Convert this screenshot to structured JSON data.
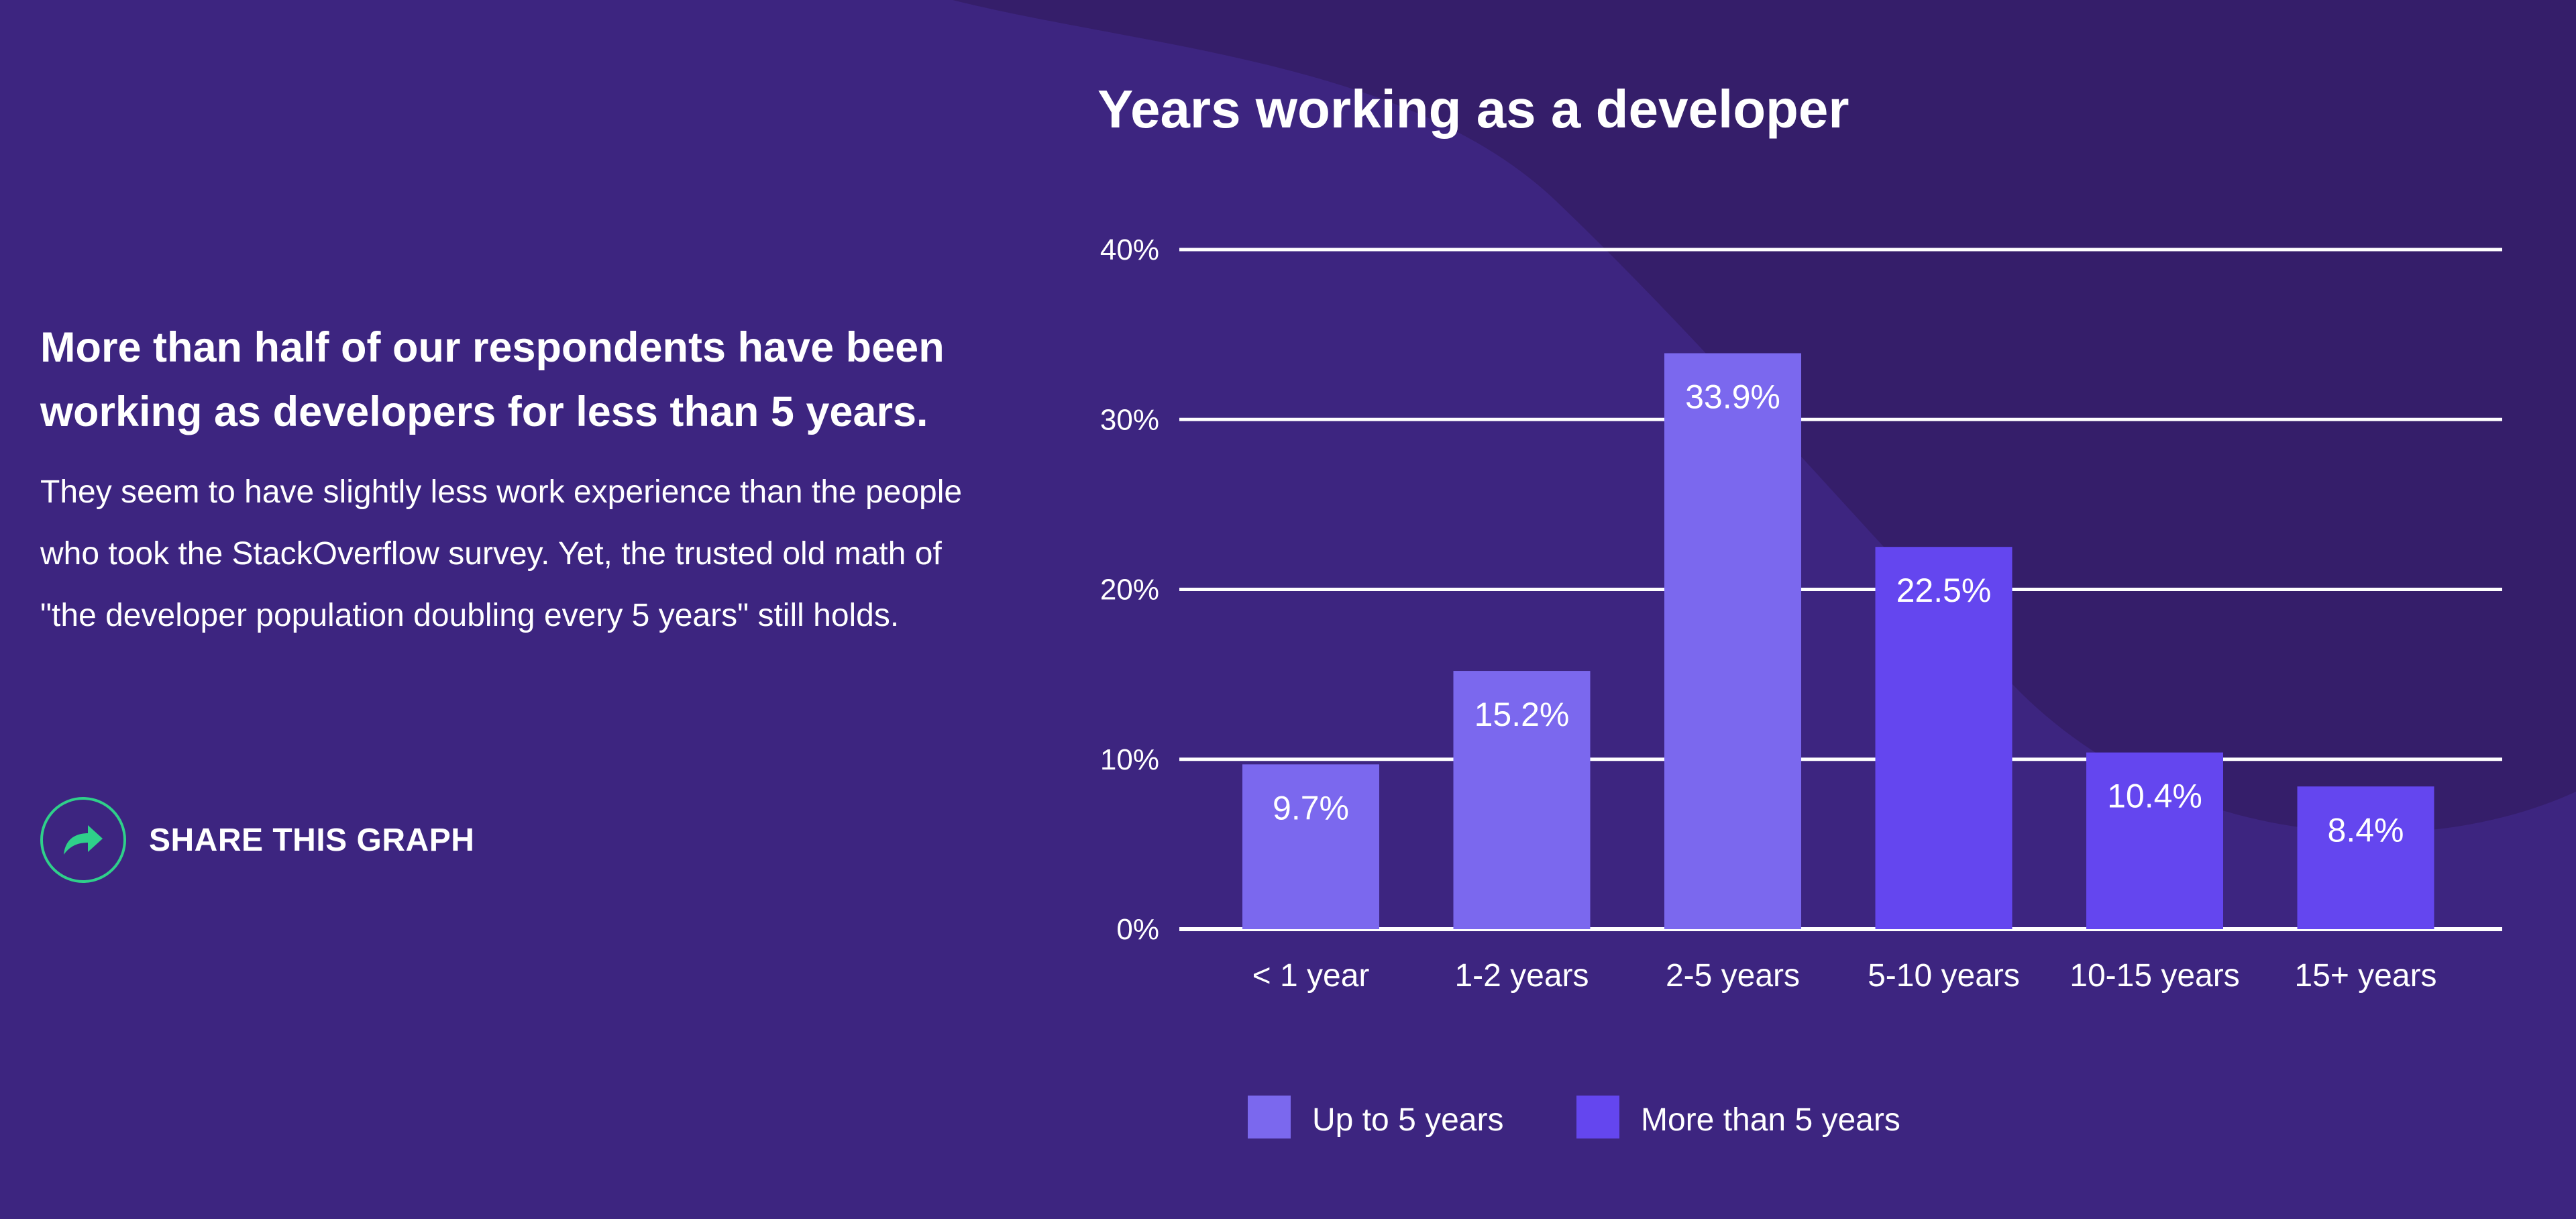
{
  "intro": {
    "headline": "More than half of our respondents have been working as developers for less than 5 years.",
    "body": "They seem to have slightly less work experience than the people who took the StackOverflow survey. Yet, the trusted old math of \"the developer population doubling every 5 years\" still holds."
  },
  "share": {
    "label": "SHARE THIS GRAPH",
    "icon": "share-arrow-icon",
    "icon_color": "#2fd08a"
  },
  "colors": {
    "background": "#3d2580",
    "background_shape": "#351e6a",
    "up_to_5": "#7b68ee",
    "more_than_5": "#6446ef",
    "gridline": "#ffffff"
  },
  "chart_data": {
    "type": "bar",
    "title": "Years working as a developer",
    "categories": [
      "< 1 year",
      "1-2 years",
      "2-5 years",
      "5-10 years",
      "10-15 years",
      "15+ years"
    ],
    "values": [
      9.7,
      15.2,
      33.9,
      22.5,
      10.4,
      8.4
    ],
    "data_labels": [
      "9.7%",
      "15.2%",
      "33.9%",
      "22.5%",
      "10.4%",
      "8.4%"
    ],
    "groups": [
      "Up to 5 years",
      "Up to 5 years",
      "Up to 5 years",
      "More than 5 years",
      "More than 5 years",
      "More than 5 years"
    ],
    "ylim": [
      0,
      40
    ],
    "yticks": [
      0,
      10,
      20,
      30,
      40
    ],
    "ytick_labels": [
      "0%",
      "10%",
      "20%",
      "30%",
      "40%"
    ],
    "grid": true,
    "legend": {
      "placement": "bottom",
      "entries": [
        {
          "name": "Up to 5 years",
          "color": "#7b68ee"
        },
        {
          "name": "More than 5 years",
          "color": "#6446ef"
        }
      ]
    }
  }
}
